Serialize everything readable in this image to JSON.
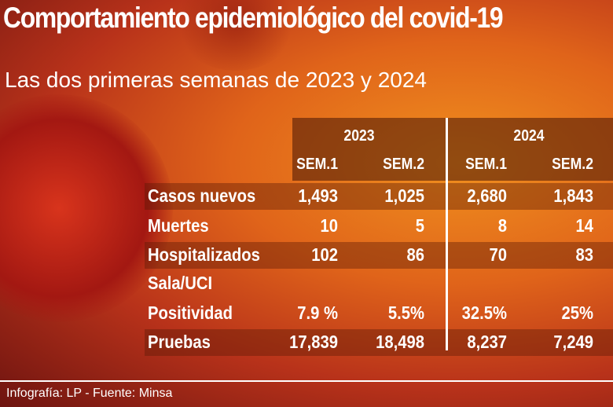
{
  "header": {
    "title": "Comportamiento epidemiológico del covid-19",
    "subtitle": "Las dos primeras semanas de 2023 y 2024"
  },
  "table": {
    "years": [
      "2023",
      "2024"
    ],
    "columns": [
      "SEM.1",
      "SEM.2",
      "SEM.1",
      "SEM.2"
    ],
    "rows": [
      [
        "Casos nuevos",
        "1,493",
        "1,025",
        "2,680",
        "1,843"
      ],
      [
        "Muertes",
        "10",
        "5",
        "8",
        "14"
      ],
      [
        "Hospitalizados\nSala/UCI",
        "102",
        "86",
        "70",
        "83"
      ],
      [
        "Positividad",
        "7.9 %",
        "5.5%",
        "32.5%",
        "25%"
      ],
      [
        "Pruebas",
        "17,839",
        "18,498",
        "8,237",
        "7,249"
      ]
    ]
  },
  "footer": "Infografía: LP - Fuente: Minsa"
}
